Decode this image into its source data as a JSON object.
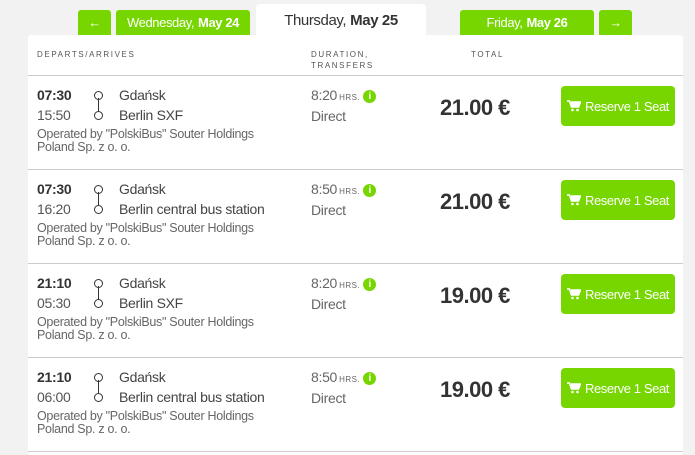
{
  "tabs": {
    "prev_arrow": "←",
    "next_arrow": "→",
    "prev": {
      "day": "Wednesday,",
      "date": "May 24"
    },
    "current": {
      "day": "Thursday,",
      "date": "May 25"
    },
    "next": {
      "day": "Friday,",
      "date": "May 26"
    }
  },
  "headers": {
    "departs": "DEPARTS/ARRIVES",
    "duration": "DURATION,",
    "transfers": "TRANSFERS",
    "total": "TOTAL"
  },
  "accent": "#77d600",
  "rows": [
    {
      "dep": "07:30",
      "arr": "15:50",
      "from": "Gdańsk",
      "to": "Berlin SXF",
      "op1": "Operated by \"PolskiBus\" Souter Holdings",
      "op2": "Poland Sp. z o. o.",
      "dur": "8:20",
      "hrs": "HRS.",
      "info": "i",
      "transfers": "Direct",
      "price": "21.00 €",
      "button": "Reserve 1 Seat"
    },
    {
      "dep": "07:30",
      "arr": "16:20",
      "from": "Gdańsk",
      "to": "Berlin central bus station",
      "op1": "Operated by \"PolskiBus\" Souter Holdings",
      "op2": "Poland Sp. z o. o.",
      "dur": "8:50",
      "hrs": "HRS.",
      "info": "i",
      "transfers": "Direct",
      "price": "21.00 €",
      "button": "Reserve 1 Seat"
    },
    {
      "dep": "21:10",
      "arr": "05:30",
      "from": "Gdańsk",
      "to": "Berlin SXF",
      "op1": "Operated by \"PolskiBus\" Souter Holdings",
      "op2": "Poland Sp. z o. o.",
      "dur": "8:20",
      "hrs": "HRS.",
      "info": "i",
      "transfers": "Direct",
      "price": "19.00 €",
      "button": "Reserve 1 Seat"
    },
    {
      "dep": "21:10",
      "arr": "06:00",
      "from": "Gdańsk",
      "to": "Berlin central bus station",
      "op1": "Operated by \"PolskiBus\" Souter Holdings",
      "op2": "Poland Sp. z o. o.",
      "dur": "8:50",
      "hrs": "HRS.",
      "info": "i",
      "transfers": "Direct",
      "price": "19.00 €",
      "button": "Reserve 1 Seat"
    }
  ]
}
